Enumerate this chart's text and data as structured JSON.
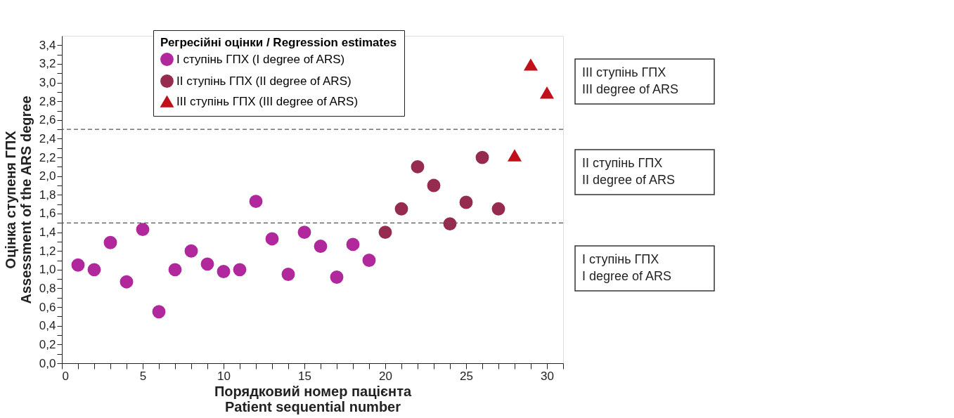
{
  "chart_data": {
    "type": "scatter",
    "xlabel": "Порядковий номер пацієнта\nPatient sequential number",
    "ylabel": "Оцінка ступеня ГПХ\nAssessment of the ARS degree",
    "legend_title": "Регресійні оцінки / Regression estimates",
    "legend": "top",
    "series": [
      {
        "name": "I ступінь ГПХ (I degree of ARS)",
        "color": "#b0289c",
        "marker": "circle",
        "x": [
          1,
          2,
          3,
          4,
          5,
          6,
          7,
          8,
          9,
          10,
          11,
          12,
          13,
          14,
          15,
          16,
          17,
          18,
          19
        ],
        "values": [
          1.05,
          1.0,
          1.29,
          0.87,
          1.43,
          0.55,
          1.0,
          1.2,
          1.06,
          0.98,
          1.0,
          1.73,
          1.33,
          0.95,
          1.4,
          1.25,
          0.92,
          1.27,
          1.1
        ]
      },
      {
        "name": "II ступінь ГПХ (II degree of ARS)",
        "color": "#962b50",
        "marker": "circle",
        "x": [
          20,
          21,
          22,
          23,
          24,
          25,
          26,
          27
        ],
        "values": [
          1.4,
          1.65,
          2.1,
          1.9,
          1.49,
          1.72,
          2.2,
          1.65
        ]
      },
      {
        "name": "III ступінь ГПХ (III degree of ARS)",
        "color": "#c0101a",
        "marker": "triangle",
        "x": [
          28,
          29,
          30
        ],
        "values": [
          2.22,
          3.19,
          2.89
        ]
      }
    ],
    "xlim": [
      0,
      31
    ],
    "xticks": [
      0,
      {
        "value": 1,
        "label": null
      },
      {
        "value": 2,
        "label": null
      },
      {
        "value": 3,
        "label": null
      },
      {
        "value": 4,
        "label": null
      },
      5,
      {
        "value": 6,
        "label": null
      },
      {
        "value": 7,
        "label": null
      },
      {
        "value": 8,
        "label": null
      },
      {
        "value": 9,
        "label": null
      },
      10,
      {
        "value": 11,
        "label": null
      },
      {
        "value": 12,
        "label": null
      },
      {
        "value": 13,
        "label": null
      },
      {
        "value": 14,
        "label": null
      },
      15,
      {
        "value": 16,
        "label": null
      },
      {
        "value": 17,
        "label": null
      },
      {
        "value": 18,
        "label": null
      },
      {
        "value": 19,
        "label": null
      },
      20,
      {
        "value": 21,
        "label": null
      },
      {
        "value": 22,
        "label": null
      },
      {
        "value": 23,
        "label": null
      },
      {
        "value": 24,
        "label": null
      },
      25,
      {
        "value": 26,
        "label": null
      },
      {
        "value": 27,
        "label": null
      },
      {
        "value": 28,
        "label": null
      },
      {
        "value": 29,
        "label": null
      },
      30,
      {
        "value": 31,
        "label": null
      }
    ],
    "ylim": [
      0,
      3.5
    ],
    "yticks": [
      {
        "value": 0,
        "label": "0,0"
      },
      {
        "value": 0.1,
        "label": null
      },
      {
        "value": 0.2,
        "label": "0,2"
      },
      {
        "value": 0.3,
        "label": null
      },
      {
        "value": 0.4,
        "label": "0,4"
      },
      {
        "value": 0.5,
        "label": null
      },
      {
        "value": 0.6,
        "label": "0,6"
      },
      {
        "value": 0.7,
        "label": null
      },
      {
        "value": 0.8,
        "label": "0,8"
      },
      {
        "value": 0.9,
        "label": null
      },
      {
        "value": 1.0,
        "label": "1,0"
      },
      {
        "value": 1.1,
        "label": null
      },
      {
        "value": 1.2,
        "label": "1,2"
      },
      {
        "value": 1.3,
        "label": null
      },
      {
        "value": 1.4,
        "label": "1,4"
      },
      {
        "value": 1.5,
        "label": null
      },
      {
        "value": 1.6,
        "label": "1,6"
      },
      {
        "value": 1.7,
        "label": null
      },
      {
        "value": 1.8,
        "label": "1,8"
      },
      {
        "value": 1.9,
        "label": null
      },
      {
        "value": 2.0,
        "label": "2,0"
      },
      {
        "value": 2.1,
        "label": null
      },
      {
        "value": 2.2,
        "label": "2,2"
      },
      {
        "value": 2.3,
        "label": null
      },
      {
        "value": 2.4,
        "label": "2,4"
      },
      {
        "value": 2.5,
        "label": null
      },
      {
        "value": 2.6,
        "label": "2,6"
      },
      {
        "value": 2.7,
        "label": null
      },
      {
        "value": 2.8,
        "label": "2,8"
      },
      {
        "value": 2.9,
        "label": null
      },
      {
        "value": 3.0,
        "label": "3,0"
      },
      {
        "value": 3.1,
        "label": null
      },
      {
        "value": 3.2,
        "label": "3,2"
      },
      {
        "value": 3.3,
        "label": null
      },
      {
        "value": 3.4,
        "label": "3,4"
      }
    ],
    "grid": false,
    "ref_lines": [
      {
        "axis": "y",
        "value": 1.5,
        "line_style": "dashed",
        "color": "#555555"
      },
      {
        "axis": "y",
        "value": 2.5,
        "line_style": "dashed",
        "color": "#555555"
      }
    ],
    "annotations": [
      "III ступінь ГПХ\nIII degree of ARS",
      "II ступінь ГПХ\nII degree of ARS",
      "I ступінь ГПХ\nI degree of ARS"
    ]
  }
}
